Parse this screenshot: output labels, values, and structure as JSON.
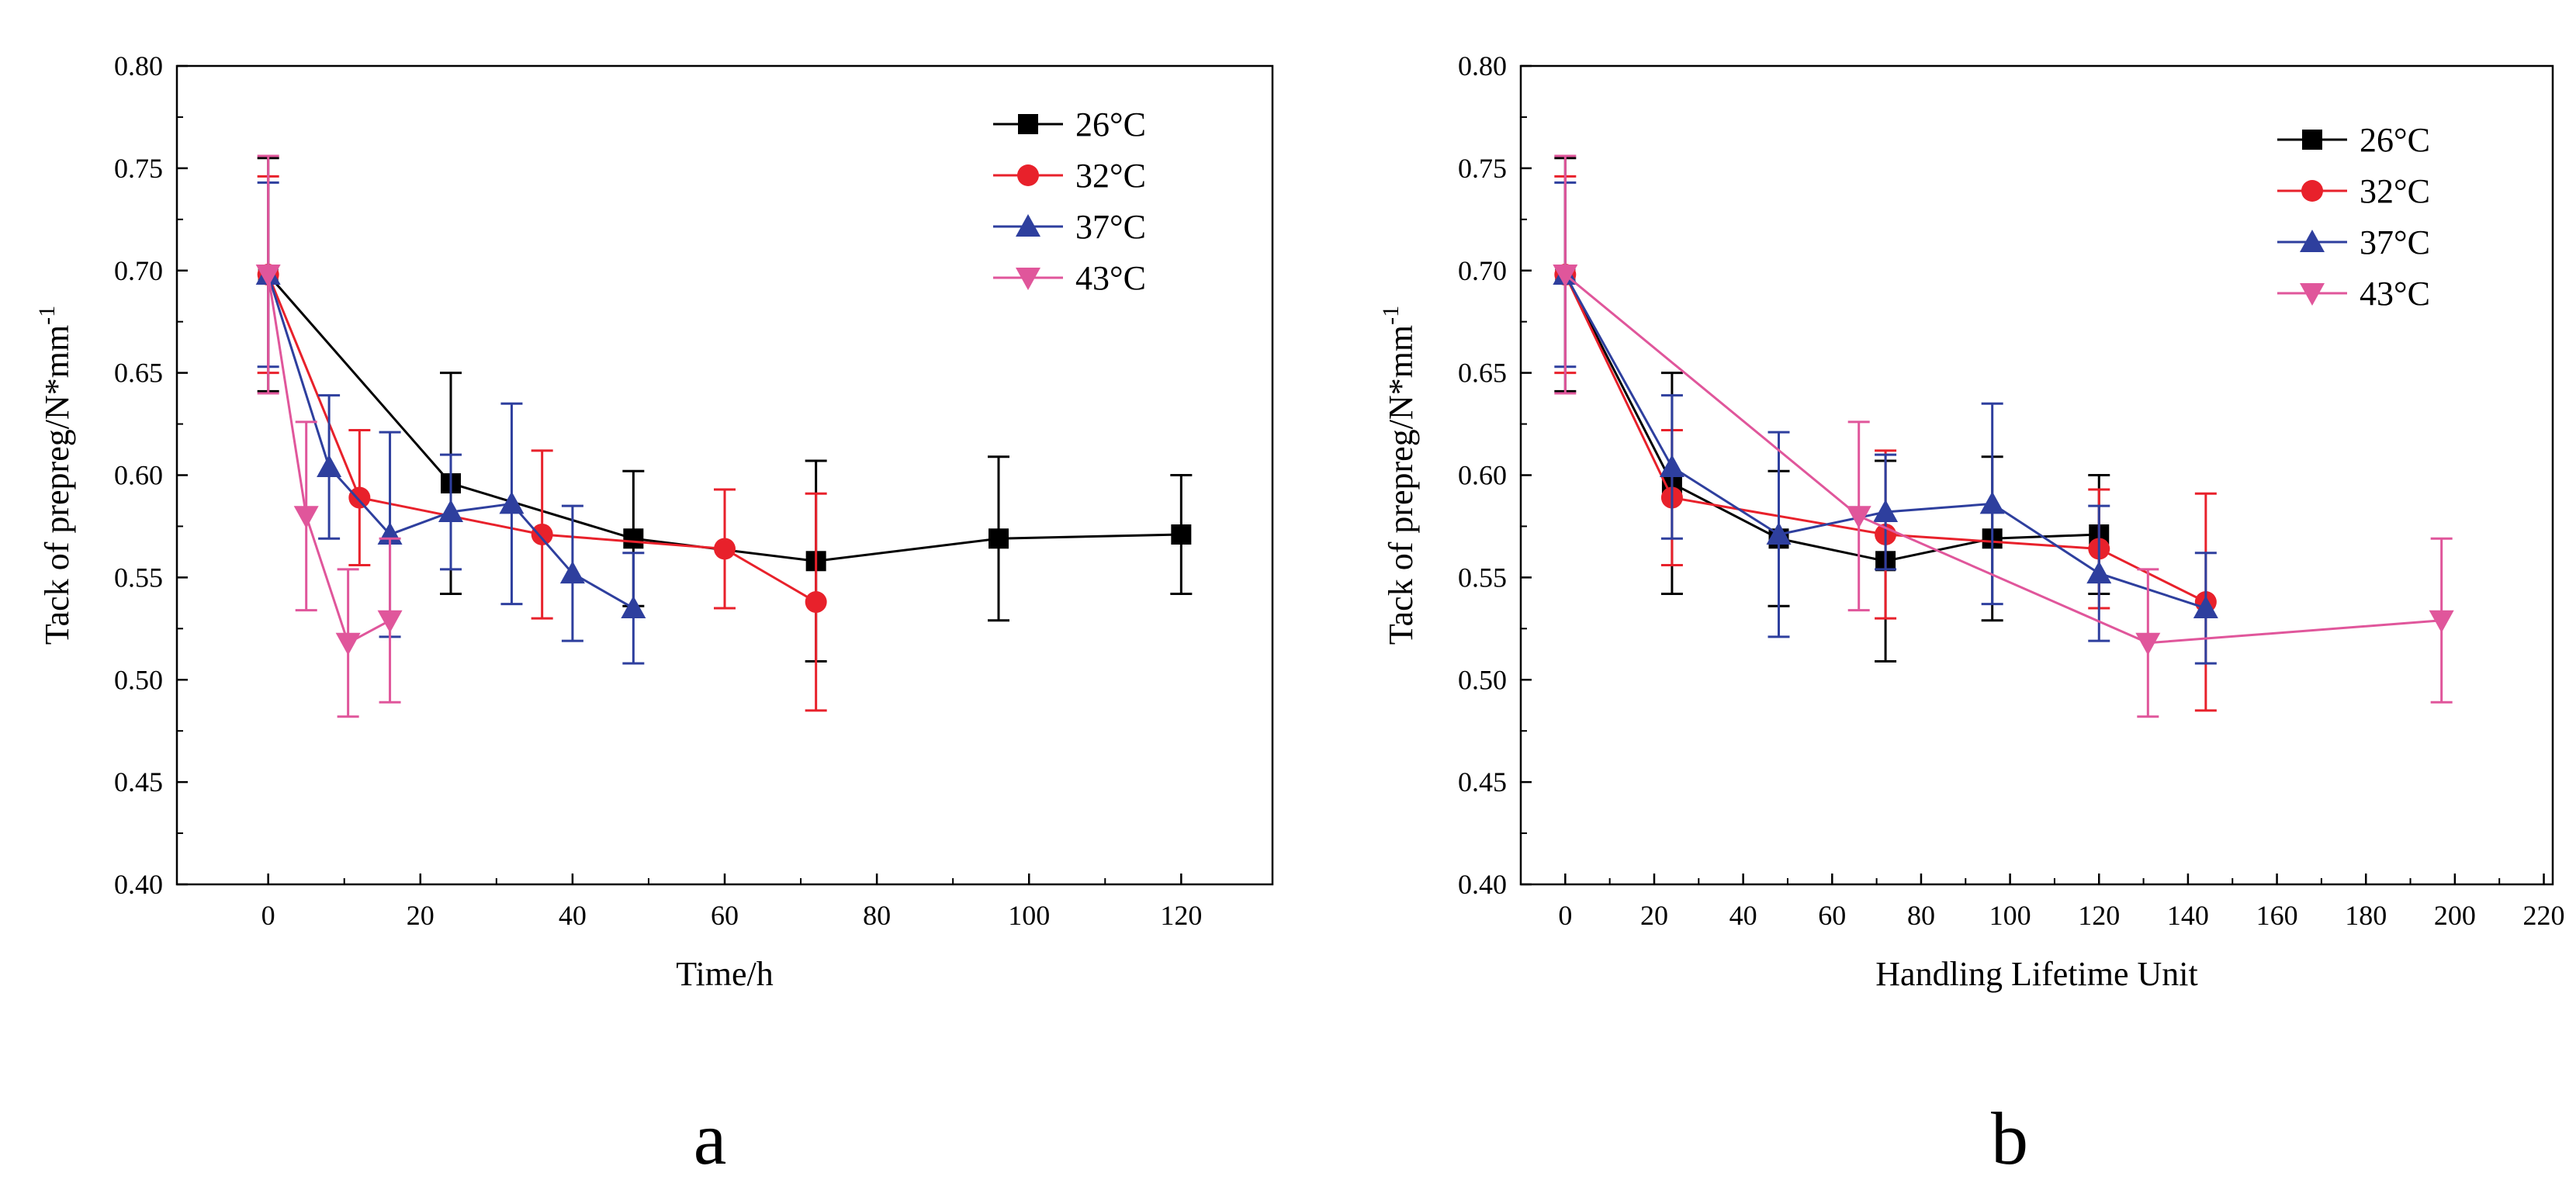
{
  "chart_data": [
    {
      "type": "line",
      "panel_label": "a",
      "title": "",
      "xlabel": "Time/h",
      "ylabel": "Tack of prepreg/N*mm",
      "ylabel_superscript": "-1",
      "xlim": [
        -12,
        132
      ],
      "ylim": [
        0.4,
        0.8
      ],
      "xticks": [
        0,
        20,
        40,
        60,
        80,
        100,
        120
      ],
      "yticks": [
        0.4,
        0.45,
        0.5,
        0.55,
        0.6,
        0.65,
        0.7,
        0.75,
        0.8
      ],
      "xtick_labels": [
        "0",
        "20",
        "40",
        "60",
        "80",
        "100",
        "120"
      ],
      "ytick_labels": [
        "0.40",
        "0.45",
        "0.50",
        "0.55",
        "0.60",
        "0.65",
        "0.70",
        "0.75",
        "0.80"
      ],
      "legend_position": "top-right",
      "series": [
        {
          "name": "26°C",
          "color": "#000000",
          "marker": "square",
          "x": [
            0,
            24,
            48,
            72,
            96,
            120
          ],
          "y": [
            0.698,
            0.596,
            0.569,
            0.558,
            0.569,
            0.571
          ],
          "err": [
            0.057,
            0.054,
            0.033,
            0.049,
            0.04,
            0.029
          ]
        },
        {
          "name": "32°C",
          "color": "#e8212b",
          "marker": "circle",
          "x": [
            0,
            12,
            36,
            60,
            72
          ],
          "y": [
            0.698,
            0.589,
            0.571,
            0.564,
            0.538
          ],
          "err": [
            0.048,
            0.033,
            0.041,
            0.029,
            0.053
          ]
        },
        {
          "name": "37°C",
          "color": "#2e3f9e",
          "marker": "triangle-up",
          "x": [
            0,
            8,
            16,
            24,
            32,
            40,
            48
          ],
          "y": [
            0.698,
            0.604,
            0.571,
            0.582,
            0.586,
            0.552,
            0.535
          ],
          "err": [
            0.045,
            0.035,
            0.05,
            0.028,
            0.049,
            0.033,
            0.027
          ]
        },
        {
          "name": "43°C",
          "color": "#e0569b",
          "marker": "triangle-down",
          "x": [
            0,
            5,
            10.5,
            16
          ],
          "y": [
            0.698,
            0.58,
            0.518,
            0.529
          ],
          "err": [
            0.058,
            0.046,
            0.036,
            0.04
          ]
        }
      ]
    },
    {
      "type": "line",
      "panel_label": "b",
      "title": "",
      "xlabel": "Handling Lifetime Unit",
      "ylabel": "Tack of prepreg/N*mm",
      "ylabel_superscript": "-1",
      "xlim": [
        -10,
        222
      ],
      "ylim": [
        0.4,
        0.8
      ],
      "xticks": [
        0,
        20,
        40,
        60,
        80,
        100,
        120,
        140,
        160,
        180,
        200,
        220
      ],
      "yticks": [
        0.4,
        0.45,
        0.5,
        0.55,
        0.6,
        0.65,
        0.7,
        0.75,
        0.8
      ],
      "xtick_labels": [
        "0",
        "20",
        "40",
        "60",
        "80",
        "100",
        "120",
        "140",
        "160",
        "180",
        "200",
        "220"
      ],
      "ytick_labels": [
        "0.40",
        "0.45",
        "0.50",
        "0.55",
        "0.60",
        "0.65",
        "0.70",
        "0.75",
        "0.80"
      ],
      "legend_position": "top-right",
      "series": [
        {
          "name": "26°C",
          "color": "#000000",
          "marker": "square",
          "x": [
            0,
            24,
            48,
            72,
            96,
            120
          ],
          "y": [
            0.698,
            0.596,
            0.569,
            0.558,
            0.569,
            0.571
          ],
          "err": [
            0.057,
            0.054,
            0.033,
            0.049,
            0.04,
            0.029
          ]
        },
        {
          "name": "32°C",
          "color": "#e8212b",
          "marker": "circle",
          "x": [
            0,
            24,
            72,
            120,
            144
          ],
          "y": [
            0.698,
            0.589,
            0.571,
            0.564,
            0.538
          ],
          "err": [
            0.048,
            0.033,
            0.041,
            0.029,
            0.053
          ]
        },
        {
          "name": "37°C",
          "color": "#2e3f9e",
          "marker": "triangle-up",
          "x": [
            0,
            24,
            48,
            72,
            96,
            120,
            144
          ],
          "y": [
            0.698,
            0.604,
            0.571,
            0.582,
            0.586,
            0.552,
            0.535
          ],
          "err": [
            0.045,
            0.035,
            0.05,
            0.028,
            0.049,
            0.033,
            0.027
          ]
        },
        {
          "name": "43°C",
          "color": "#e0569b",
          "marker": "triangle-down",
          "x": [
            0,
            66,
            131,
            197
          ],
          "y": [
            0.698,
            0.58,
            0.518,
            0.529
          ],
          "err": [
            0.058,
            0.046,
            0.036,
            0.04
          ]
        }
      ]
    }
  ]
}
